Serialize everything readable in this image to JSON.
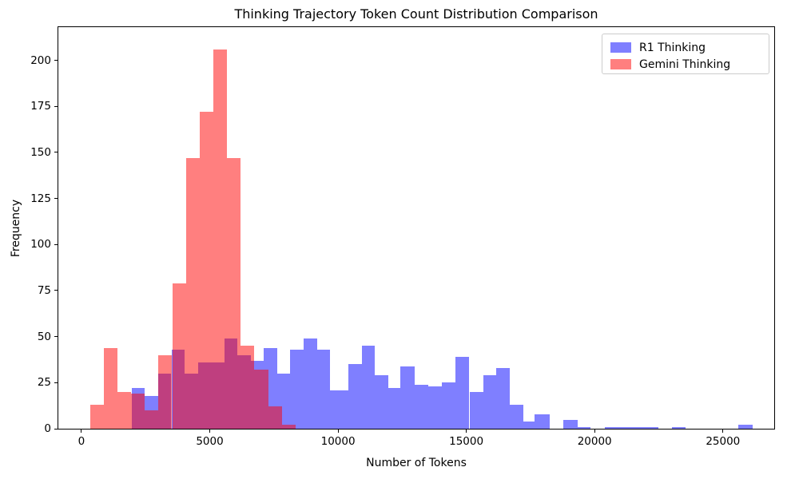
{
  "figure": {
    "title": "Thinking Trajectory Token Count Distribution Comparison",
    "xlabel": "Number of Tokens",
    "ylabel": "Frequency"
  },
  "legend": {
    "items": [
      {
        "label": "R1 Thinking",
        "color_hex": "#0000ff"
      },
      {
        "label": "Gemini Thinking",
        "color_hex": "#ff0000"
      }
    ]
  },
  "chart_data": {
    "type": "bar",
    "subtype": "overlaid-histograms",
    "title": "Thinking Trajectory Token Count Distribution Comparison",
    "xlabel": "Number of Tokens",
    "ylabel": "Frequency",
    "bar_alpha": 0.5,
    "grid": false,
    "legend_position": "upper right",
    "x_axis": {
      "ticks": [
        0,
        5000,
        10000,
        15000,
        20000,
        25000
      ],
      "range_tokens": [
        -900,
        27000
      ]
    },
    "y_axis": {
      "ticks": [
        0,
        25,
        50,
        75,
        100,
        125,
        150,
        175,
        200
      ],
      "range": [
        0,
        218
      ]
    },
    "series": [
      {
        "name": "R1 Thinking",
        "color_hex": "#0000ff",
        "bars_token_start_end_freq": [
          [
            1960,
            2475,
            22
          ],
          [
            2475,
            2990,
            18
          ],
          [
            2990,
            3505,
            30
          ],
          [
            3505,
            4020,
            43
          ],
          [
            4020,
            4535,
            30
          ],
          [
            4535,
            5050,
            36
          ],
          [
            5050,
            5565,
            36
          ],
          [
            5565,
            6065,
            49
          ],
          [
            6065,
            6595,
            40
          ],
          [
            6595,
            7110,
            37
          ],
          [
            7110,
            7625,
            44
          ],
          [
            7625,
            8140,
            30
          ],
          [
            8140,
            8655,
            43
          ],
          [
            8655,
            9180,
            49
          ],
          [
            9180,
            9700,
            43
          ],
          [
            9700,
            10400,
            21
          ],
          [
            10400,
            10920,
            35
          ],
          [
            10920,
            11440,
            45
          ],
          [
            11440,
            11960,
            29
          ],
          [
            11960,
            12440,
            22
          ],
          [
            12440,
            12990,
            34
          ],
          [
            12990,
            13510,
            24
          ],
          [
            13510,
            14050,
            23
          ],
          [
            14050,
            14570,
            25
          ],
          [
            14570,
            15120,
            39
          ],
          [
            15120,
            15650,
            20
          ],
          [
            15650,
            16170,
            29
          ],
          [
            16170,
            16690,
            33
          ],
          [
            16690,
            17210,
            13
          ],
          [
            17210,
            17670,
            4
          ],
          [
            17670,
            18240,
            8
          ],
          [
            18790,
            19330,
            5
          ],
          [
            19330,
            19850,
            1
          ],
          [
            20400,
            22480,
            1
          ],
          [
            23010,
            23550,
            1
          ],
          [
            25610,
            26160,
            2
          ]
        ]
      },
      {
        "name": "Gemini Thinking",
        "color_hex": "#ff0000",
        "bars_token_start_end_freq": [
          [
            330,
            870,
            13
          ],
          [
            870,
            1400,
            44
          ],
          [
            1400,
            1935,
            20
          ],
          [
            1935,
            2470,
            19
          ],
          [
            2470,
            3000,
            10
          ],
          [
            3000,
            3540,
            40
          ],
          [
            3540,
            4070,
            79
          ],
          [
            4070,
            4610,
            147
          ],
          [
            4610,
            5140,
            172
          ],
          [
            5140,
            5675,
            206
          ],
          [
            5675,
            6210,
            147
          ],
          [
            6210,
            6740,
            45
          ],
          [
            6740,
            7280,
            32
          ],
          [
            7280,
            7810,
            12
          ],
          [
            7810,
            8350,
            2
          ]
        ]
      }
    ]
  }
}
